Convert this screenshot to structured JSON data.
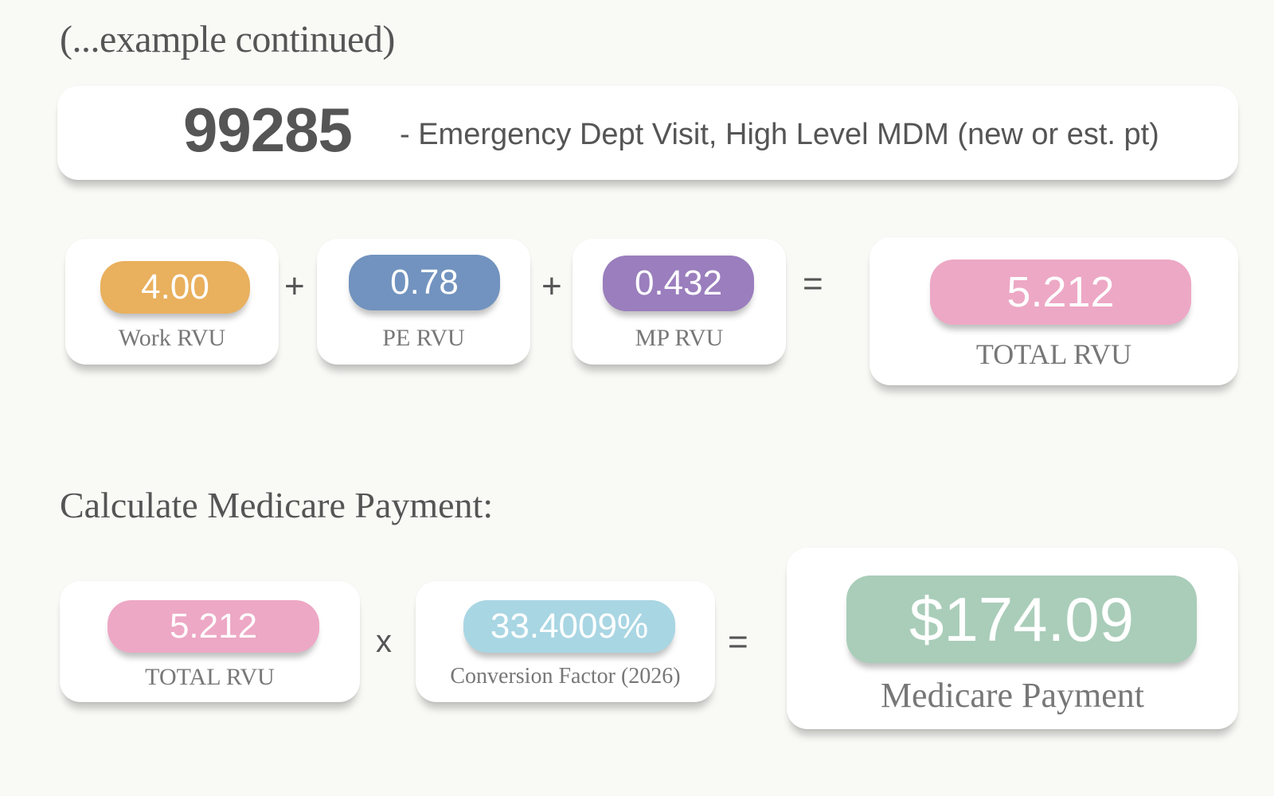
{
  "intro": "(...example continued)",
  "code": {
    "number": "99285",
    "description": "- Emergency Dept Visit, High Level MDM (new or est. pt)"
  },
  "rvu": {
    "work": {
      "value": "4.00",
      "label": "Work RVU",
      "color": "#e9b05e"
    },
    "pe": {
      "value": "0.78",
      "label": "PE RVU",
      "color": "#7293bf"
    },
    "mp": {
      "value": "0.432",
      "label": "MP RVU",
      "color": "#9a7ebd"
    },
    "total": {
      "value": "5.212",
      "label": "TOTAL RVU",
      "color": "#eda8c5"
    },
    "plus_1": "+",
    "plus_2": "+",
    "equals": "="
  },
  "payment": {
    "title": "Calculate Medicare Payment:",
    "total_rvu": {
      "value": "5.212",
      "label": "TOTAL RVU",
      "color": "#eda8c5"
    },
    "times": "x",
    "conversion": {
      "value": "33.4009%",
      "label": "Conversion Factor (2026)",
      "color": "#a9d6e3"
    },
    "equals": "=",
    "result": {
      "value": "$174.09",
      "label": "Medicare Payment",
      "color": "#a9cdb9"
    }
  }
}
